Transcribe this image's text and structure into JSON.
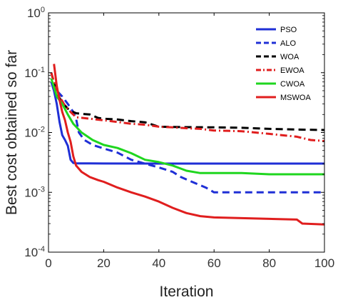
{
  "chart_data": {
    "type": "line",
    "xlabel": "Iteration",
    "ylabel": "Best cost obtained so far",
    "xlim": [
      0,
      100
    ],
    "ylim": [
      0.0001,
      1
    ],
    "y_scale": "log",
    "x_ticks": [
      0,
      20,
      40,
      60,
      80,
      100
    ],
    "x_tick_labels": [
      "0",
      "20",
      "40",
      "60",
      "80",
      "100"
    ],
    "y_ticks": [
      {
        "value": 0.0001,
        "base": "10",
        "exp": "-4"
      },
      {
        "value": 0.001,
        "base": "10",
        "exp": "-3"
      },
      {
        "value": 0.01,
        "base": "10",
        "exp": "-2"
      },
      {
        "value": 0.1,
        "base": "10",
        "exp": "-1"
      },
      {
        "value": 1,
        "base": "10",
        "exp": "0"
      }
    ],
    "grid": false,
    "legend_position": "top-right",
    "series": [
      {
        "name": "PSO",
        "color": "#1f2fd6",
        "dash": "solid",
        "x": [
          1,
          2,
          3,
          4,
          5,
          6,
          7,
          8,
          9,
          10,
          15,
          20,
          40,
          60,
          80,
          100
        ],
        "y": [
          0.07,
          0.05,
          0.03,
          0.015,
          0.009,
          0.0075,
          0.006,
          0.0035,
          0.0031,
          0.00305,
          0.00304,
          0.00303,
          0.00302,
          0.00302,
          0.00302,
          0.00302
        ]
      },
      {
        "name": "ALO",
        "color": "#1f2fd6",
        "dash": "dashed",
        "x": [
          1,
          3,
          5,
          7,
          9,
          10,
          11,
          13,
          16,
          20,
          25,
          30,
          40,
          45,
          48,
          52,
          57,
          60,
          70,
          80,
          90,
          100
        ],
        "y": [
          0.07,
          0.05,
          0.04,
          0.03,
          0.022,
          0.017,
          0.01,
          0.0075,
          0.0062,
          0.0054,
          0.0046,
          0.0035,
          0.0026,
          0.0022,
          0.0018,
          0.0015,
          0.0012,
          0.001,
          0.001,
          0.001,
          0.001,
          0.001
        ]
      },
      {
        "name": "WOA",
        "color": "#000000",
        "dash": "dashed",
        "x": [
          1,
          3,
          5,
          7,
          9,
          10,
          12,
          15,
          18,
          20,
          25,
          30,
          35,
          40,
          50,
          60,
          70,
          80,
          90,
          100
        ],
        "y": [
          0.1,
          0.045,
          0.032,
          0.025,
          0.022,
          0.021,
          0.0205,
          0.02,
          0.0175,
          0.017,
          0.0165,
          0.0155,
          0.0148,
          0.0125,
          0.0123,
          0.0122,
          0.012,
          0.0115,
          0.0112,
          0.011
        ]
      },
      {
        "name": "EWOA",
        "color": "#e01e1e",
        "dash": "dashdot",
        "x": [
          1,
          2,
          4,
          6,
          8,
          10,
          15,
          20,
          25,
          30,
          35,
          40,
          45,
          50,
          55,
          60,
          70,
          80,
          90,
          95,
          100
        ],
        "y": [
          0.1,
          0.07,
          0.04,
          0.028,
          0.022,
          0.018,
          0.017,
          0.016,
          0.015,
          0.014,
          0.0135,
          0.0125,
          0.0122,
          0.0118,
          0.0115,
          0.0108,
          0.0105,
          0.0095,
          0.0085,
          0.0075,
          0.0072
        ]
      },
      {
        "name": "CWOA",
        "color": "#1fd61f",
        "dash": "solid",
        "x": [
          1,
          3,
          5,
          7,
          9,
          12,
          16,
          20,
          25,
          30,
          35,
          40,
          45,
          50,
          55,
          60,
          70,
          80,
          90,
          100
        ],
        "y": [
          0.08,
          0.04,
          0.03,
          0.02,
          0.014,
          0.01,
          0.0075,
          0.0062,
          0.0055,
          0.0045,
          0.0035,
          0.0032,
          0.0028,
          0.0023,
          0.0021,
          0.0021,
          0.0021,
          0.002,
          0.002,
          0.002
        ]
      },
      {
        "name": "MSWOA",
        "color": "#e01e1e",
        "dash": "solid",
        "x": [
          2,
          3,
          4,
          5,
          6,
          7,
          8,
          9,
          10,
          12,
          15,
          18,
          20,
          25,
          30,
          35,
          40,
          45,
          50,
          55,
          60,
          70,
          80,
          90,
          92,
          100
        ],
        "y": [
          0.14,
          0.06,
          0.035,
          0.022,
          0.016,
          0.01,
          0.007,
          0.004,
          0.0028,
          0.0022,
          0.0018,
          0.0016,
          0.0015,
          0.0012,
          0.001,
          0.00085,
          0.0007,
          0.00055,
          0.00045,
          0.0004,
          0.00038,
          0.00037,
          0.00036,
          0.00035,
          0.0003,
          0.00029
        ]
      }
    ]
  }
}
